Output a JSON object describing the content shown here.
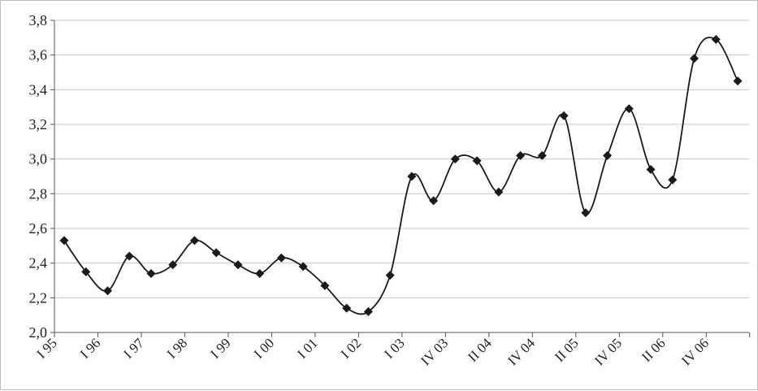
{
  "chart_data": {
    "type": "line",
    "title": "",
    "xlabel": "",
    "ylabel": "",
    "ylim": [
      2.0,
      3.8
    ],
    "y_ticks": [
      "2,0",
      "2,2",
      "2,4",
      "2,6",
      "2,8",
      "3,0",
      "3,2",
      "3,4",
      "3,6",
      "3,8"
    ],
    "y_tick_values": [
      2.0,
      2.2,
      2.4,
      2.6,
      2.8,
      3.0,
      3.2,
      3.4,
      3.6,
      3.8
    ],
    "x_tick_labels": [
      "I 95",
      "I 96",
      "I 97",
      "I 98",
      "I 99",
      "I 00",
      "I 01",
      "I 02",
      "I 03",
      "IV 03",
      "II 04",
      "IV 04",
      "II 05",
      "IV 05",
      "II 06",
      "IV 06"
    ],
    "grid": "horizontal",
    "legend": "none",
    "smooth": true,
    "line_color": "#1a1a1a",
    "marker": "diamond",
    "series": [
      {
        "values": [
          2.53,
          2.35,
          2.24,
          2.44,
          2.34,
          2.39,
          2.53,
          2.46,
          2.39,
          2.34,
          2.43,
          2.38,
          2.27,
          2.14,
          2.12,
          2.33,
          2.9,
          2.76,
          3.0,
          2.99,
          2.81,
          3.02,
          3.02,
          3.25,
          2.69,
          3.02,
          3.29,
          2.94,
          2.88,
          3.58,
          3.69,
          3.45
        ]
      }
    ]
  }
}
